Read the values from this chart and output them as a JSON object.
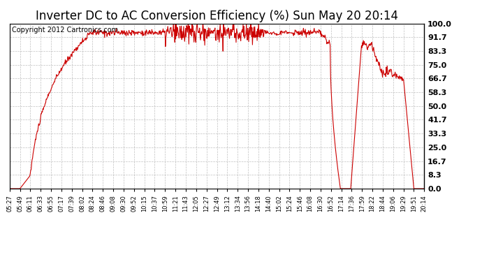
{
  "title": "Inverter DC to AC Conversion Efficiency (%) Sun May 20 20:14",
  "copyright": "Copyright 2012 Cartronics.com",
  "ylabel_right": [
    "0.0",
    "8.3",
    "16.7",
    "25.0",
    "33.3",
    "41.7",
    "50.0",
    "58.3",
    "66.7",
    "75.0",
    "83.3",
    "91.7",
    "100.0"
  ],
  "yticks": [
    0.0,
    8.3,
    16.7,
    25.0,
    33.3,
    41.7,
    50.0,
    58.3,
    66.7,
    75.0,
    83.3,
    91.7,
    100.0
  ],
  "ymin": 0.0,
  "ymax": 100.0,
  "line_color": "#cc0000",
  "bg_color": "#ffffff",
  "grid_color": "#b0b0b0",
  "title_fontsize": 12,
  "copyright_fontsize": 7,
  "x_tick_labels": [
    "05:27",
    "05:49",
    "06:11",
    "06:33",
    "06:55",
    "07:17",
    "07:39",
    "08:02",
    "08:24",
    "08:46",
    "09:08",
    "09:30",
    "09:52",
    "10:15",
    "10:37",
    "10:59",
    "11:21",
    "11:43",
    "12:05",
    "12:27",
    "12:49",
    "13:12",
    "13:34",
    "13:56",
    "14:18",
    "14:40",
    "15:02",
    "15:24",
    "15:46",
    "16:08",
    "16:30",
    "16:52",
    "17:14",
    "17:36",
    "17:59",
    "18:22",
    "18:44",
    "19:06",
    "19:29",
    "19:51",
    "20:14"
  ]
}
